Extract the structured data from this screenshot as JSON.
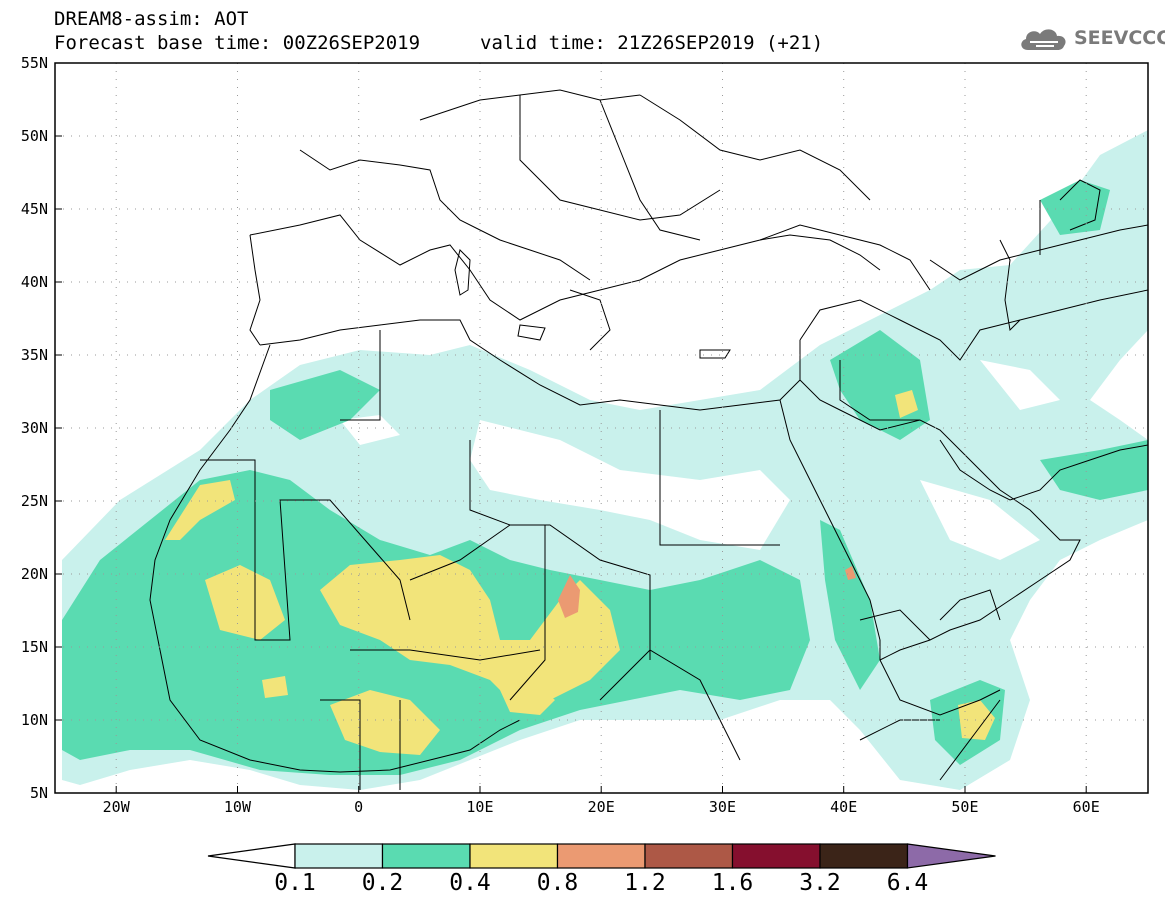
{
  "header": {
    "title": "DREAM8-assim: AOT",
    "base_time": "Forecast base time: 00Z26SEP2019",
    "valid_time": "valid time: 21Z26SEP2019 (+21)",
    "logo_text": "SEEVCCC",
    "logo_icon": "cloud-icon"
  },
  "axes": {
    "lat_labels": [
      "55N",
      "50N",
      "45N",
      "40N",
      "35N",
      "30N",
      "25N",
      "20N",
      "15N",
      "10N",
      "5N"
    ],
    "lon_labels": [
      "20W",
      "10W",
      "0",
      "10E",
      "20E",
      "30E",
      "40E",
      "50E",
      "60E"
    ]
  },
  "colorbar": {
    "colors": [
      "#c9f1ec",
      "#5adbb1",
      "#f2e47a",
      "#eb9a72",
      "#ad5846",
      "#850f2e",
      "#3b2418",
      "#8d6aa8"
    ],
    "labels": [
      "0.1",
      "0.2",
      "0.4",
      "0.8",
      "1.2",
      "1.6",
      "3.2",
      "6.4"
    ]
  }
}
